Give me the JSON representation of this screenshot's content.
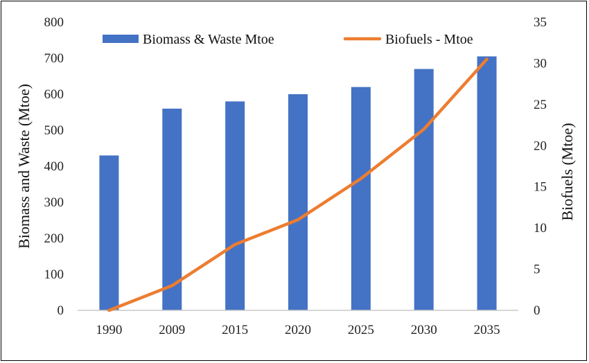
{
  "chart_data": {
    "type": "bar+line",
    "title": "",
    "categories": [
      "1990",
      "2009",
      "2015",
      "2020",
      "2025",
      "2030",
      "2035"
    ],
    "series": [
      {
        "name": "Biomass  & Waste Mtoe",
        "type": "bar",
        "axis": "left",
        "color": "#4472C4",
        "values": [
          430,
          560,
          580,
          600,
          620,
          670,
          705
        ]
      },
      {
        "name": "Biofuels - Mtoe",
        "type": "line",
        "axis": "right",
        "color": "#ED7D31",
        "values": [
          0,
          3,
          8,
          11,
          16,
          22,
          30.5
        ]
      }
    ],
    "ylabel_left": "Biomass  and Waste (Mtoe)",
    "ylabel_right": "Biofuels (Mtoe)",
    "ylim_left": [
      0,
      800
    ],
    "yticks_left": [
      "0",
      "100",
      "200",
      "300",
      "400",
      "500",
      "600",
      "700",
      "800"
    ],
    "ylim_right": [
      0,
      35
    ],
    "yticks_right": [
      "0",
      "5",
      "10",
      "15",
      "20",
      "25",
      "30",
      "35"
    ],
    "grid": false,
    "legend": "top"
  }
}
